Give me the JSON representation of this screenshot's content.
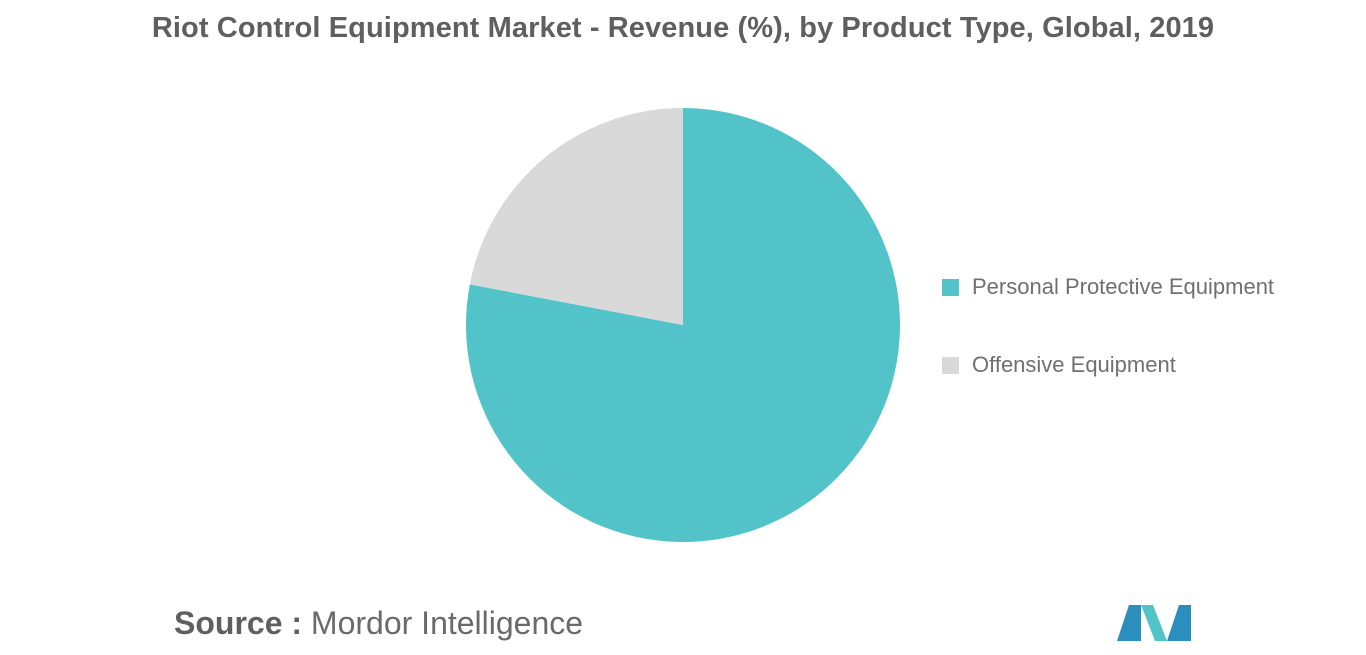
{
  "chart_data": {
    "type": "pie",
    "title": "Riot Control Equipment Market - Revenue (%), by Product Type, Global, 2019",
    "slices": [
      {
        "label": "Personal Protective Equipment",
        "value": 78,
        "color": "#52c4c9"
      },
      {
        "label": "Offensive Equipment",
        "value": 22,
        "color": "#d9d9d9"
      }
    ],
    "legend_position": "right"
  },
  "source": {
    "label": "Source :",
    "text": "Mordor Intelligence"
  },
  "logo": {
    "colors": [
      "#2a8fbd",
      "#52c4c9",
      "#1e4f7a"
    ]
  }
}
